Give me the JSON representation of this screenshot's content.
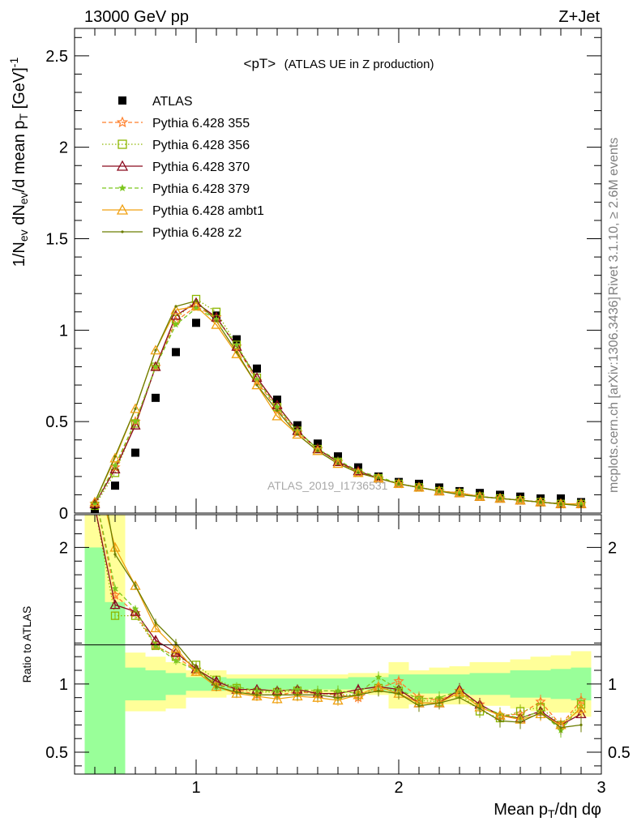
{
  "header": {
    "left": "13000 GeV pp",
    "right": "Z+Jet"
  },
  "side_labels": {
    "rivet": "Rivet 3.1.10, ≥ 2.6M events",
    "mcplots": "mcplots.cern.ch [arXiv:1306.3436]"
  },
  "watermark": "ATLAS_2019_I1736531",
  "colors": {
    "atlas": "#000000",
    "p355": "#ff7f2a",
    "p356": "#8db600",
    "p370": "#8b0a1e",
    "p379": "#7cc61e",
    "ambt1": "#f0a010",
    "z2": "#6b7d00",
    "band_inner": "#99ff99",
    "band_outer": "#ffff99"
  },
  "chart_data": [
    {
      "type": "scatter",
      "panel": "main",
      "title_main": "<pT>",
      "title_sub": "(ATLAS UE in Z production)",
      "ylabel": "1/N_ev dN_ev/d mean p_T [GeV]^-1",
      "xlim": [
        0.4,
        3.0
      ],
      "ylim": [
        0,
        2.65
      ],
      "yticks": [
        0,
        0.5,
        1,
        1.5,
        2,
        2.5
      ],
      "ytick_labels": [
        "0",
        "0.5",
        "1",
        "1.5",
        "2",
        "2.5"
      ],
      "legend_position": "top-left",
      "x": [
        0.5,
        0.6,
        0.7,
        0.8,
        0.9,
        1.0,
        1.1,
        1.2,
        1.3,
        1.4,
        1.5,
        1.6,
        1.7,
        1.8,
        1.9,
        2.0,
        2.1,
        2.2,
        2.3,
        2.4,
        2.5,
        2.6,
        2.7,
        2.8,
        2.9
      ],
      "series": [
        {
          "name": "ATLAS",
          "marker": "square",
          "line": "none",
          "values": [
            0.02,
            0.15,
            0.33,
            0.63,
            0.88,
            1.04,
            1.08,
            0.95,
            0.79,
            0.62,
            0.48,
            0.38,
            0.31,
            0.25,
            0.2,
            0.17,
            0.16,
            0.14,
            0.12,
            0.11,
            0.1,
            0.09,
            0.08,
            0.08,
            0.06
          ]
        },
        {
          "name": "Pythia 6.428 355",
          "marker": "star-open",
          "line": "dashed",
          "values": [
            0.05,
            0.25,
            0.5,
            0.8,
            1.05,
            1.13,
            1.07,
            0.91,
            0.72,
            0.57,
            0.44,
            0.35,
            0.28,
            0.22,
            0.19,
            0.16,
            0.14,
            0.12,
            0.11,
            0.09,
            0.08,
            0.07,
            0.06,
            0.05,
            0.05
          ]
        },
        {
          "name": "Pythia 6.428 356",
          "marker": "square-open",
          "line": "dotted",
          "values": [
            0.04,
            0.22,
            0.49,
            0.8,
            1.06,
            1.17,
            1.1,
            0.92,
            0.74,
            0.58,
            0.45,
            0.35,
            0.28,
            0.22,
            0.19,
            0.16,
            0.14,
            0.12,
            0.11,
            0.09,
            0.08,
            0.07,
            0.06,
            0.05,
            0.05
          ]
        },
        {
          "name": "Pythia 6.428 370",
          "marker": "triangle-open",
          "line": "solid",
          "values": [
            0.05,
            0.24,
            0.48,
            0.8,
            1.08,
            1.15,
            1.07,
            0.91,
            0.74,
            0.59,
            0.45,
            0.35,
            0.28,
            0.23,
            0.19,
            0.16,
            0.14,
            0.12,
            0.11,
            0.09,
            0.08,
            0.07,
            0.06,
            0.05,
            0.05
          ]
        },
        {
          "name": "Pythia 6.428 379",
          "marker": "star-filled",
          "line": "dashed",
          "values": [
            0.05,
            0.26,
            0.5,
            0.8,
            1.03,
            1.12,
            1.06,
            0.92,
            0.73,
            0.58,
            0.45,
            0.35,
            0.29,
            0.23,
            0.2,
            0.16,
            0.14,
            0.12,
            0.11,
            0.09,
            0.08,
            0.07,
            0.06,
            0.05,
            0.05
          ]
        },
        {
          "name": "Pythia 6.428 ambt1",
          "marker": "triangle-open",
          "line": "solid",
          "values": [
            0.06,
            0.3,
            0.57,
            0.89,
            1.11,
            1.13,
            1.03,
            0.87,
            0.7,
            0.53,
            0.43,
            0.34,
            0.27,
            0.22,
            0.19,
            0.16,
            0.14,
            0.12,
            0.11,
            0.09,
            0.08,
            0.07,
            0.06,
            0.05,
            0.05
          ]
        },
        {
          "name": "Pythia 6.428 z2",
          "marker": "dot",
          "line": "solid",
          "values": [
            0.06,
            0.31,
            0.57,
            0.89,
            1.13,
            1.16,
            1.05,
            0.88,
            0.7,
            0.56,
            0.43,
            0.34,
            0.27,
            0.22,
            0.19,
            0.16,
            0.14,
            0.12,
            0.1,
            0.09,
            0.08,
            0.07,
            0.06,
            0.05,
            0.04
          ]
        }
      ]
    },
    {
      "type": "line",
      "panel": "ratio",
      "ylabel": "Ratio to ATLAS",
      "xlabel": "Mean p_T/dη dφ",
      "xlim": [
        0.4,
        3.0
      ],
      "ylim": [
        0.34,
        2.24
      ],
      "xticks": [
        1,
        2,
        3
      ],
      "xtick_labels": [
        "1",
        "2",
        "3"
      ],
      "yticks": [
        0.5,
        1,
        2
      ],
      "ytick_labels": [
        "0.5",
        "1",
        "2"
      ],
      "x": [
        0.5,
        0.6,
        0.7,
        0.8,
        0.9,
        1.0,
        1.1,
        1.2,
        1.3,
        1.4,
        1.5,
        1.6,
        1.7,
        1.8,
        1.9,
        2.0,
        2.1,
        2.2,
        2.3,
        2.4,
        2.5,
        2.6,
        2.7,
        2.8,
        2.9
      ],
      "bands": {
        "x_edges": [
          0.45,
          0.55,
          0.65,
          0.75,
          0.85,
          0.95,
          1.05,
          1.15,
          1.25,
          1.35,
          1.45,
          1.55,
          1.65,
          1.75,
          1.85,
          1.95,
          2.05,
          2.15,
          2.25,
          2.35,
          2.45,
          2.55,
          2.65,
          2.75,
          2.85,
          2.95
        ],
        "inner_lo": [
          0.3,
          0.3,
          0.88,
          0.88,
          0.92,
          0.95,
          0.95,
          0.96,
          0.96,
          0.96,
          0.96,
          0.96,
          0.96,
          0.96,
          0.95,
          0.93,
          0.93,
          0.93,
          0.93,
          0.92,
          0.92,
          0.9,
          0.9,
          0.89,
          0.88
        ],
        "inner_hi": [
          2.0,
          1.6,
          1.12,
          1.1,
          1.08,
          1.05,
          1.05,
          1.04,
          1.04,
          1.04,
          1.04,
          1.04,
          1.04,
          1.05,
          1.05,
          1.07,
          1.07,
          1.07,
          1.07,
          1.08,
          1.08,
          1.1,
          1.1,
          1.11,
          1.12
        ],
        "outer_lo": [
          0.3,
          0.3,
          0.8,
          0.8,
          0.82,
          0.9,
          0.9,
          0.92,
          0.93,
          0.93,
          0.93,
          0.93,
          0.93,
          0.93,
          0.92,
          0.82,
          0.85,
          0.85,
          0.85,
          0.84,
          0.84,
          0.82,
          0.8,
          0.79,
          0.76
        ],
        "outer_hi": [
          2.24,
          2.24,
          1.23,
          1.2,
          1.16,
          1.1,
          1.1,
          1.07,
          1.07,
          1.07,
          1.07,
          1.07,
          1.07,
          1.08,
          1.08,
          1.16,
          1.1,
          1.12,
          1.13,
          1.16,
          1.16,
          1.18,
          1.2,
          1.21,
          1.24
        ]
      },
      "series": [
        {
          "name": "Pythia 6.428 355",
          "values": [
            2.4,
            1.65,
            1.52,
            1.28,
            1.2,
            1.1,
            1.0,
            0.96,
            0.92,
            0.92,
            0.94,
            0.93,
            0.92,
            0.9,
            0.97,
            1.02,
            0.9,
            0.88,
            0.95,
            0.85,
            0.77,
            0.78,
            0.87,
            0.7,
            0.88
          ]
        },
        {
          "name": "Pythia 6.428 356",
          "values": [
            2.3,
            1.5,
            1.5,
            1.28,
            1.2,
            1.14,
            1.03,
            0.97,
            0.94,
            0.94,
            0.95,
            0.93,
            0.92,
            0.92,
            0.97,
            0.95,
            0.88,
            0.87,
            0.93,
            0.8,
            0.75,
            0.8,
            0.83,
            0.7,
            0.85
          ]
        },
        {
          "name": "Pythia 6.428 370",
          "values": [
            2.3,
            1.58,
            1.53,
            1.32,
            1.23,
            1.11,
            1.02,
            0.96,
            0.96,
            0.95,
            0.96,
            0.93,
            0.93,
            0.96,
            0.98,
            0.96,
            0.86,
            0.86,
            0.96,
            0.85,
            0.77,
            0.75,
            0.8,
            0.7,
            0.78
          ]
        },
        {
          "name": "Pythia 6.428 379",
          "values": [
            2.4,
            1.7,
            1.55,
            1.28,
            1.17,
            1.1,
            0.98,
            0.98,
            0.95,
            0.95,
            0.96,
            0.95,
            0.95,
            0.93,
            1.05,
            0.96,
            0.89,
            0.9,
            0.95,
            0.84,
            0.78,
            0.75,
            0.8,
            0.66,
            0.84
          ]
        },
        {
          "name": "Pythia 6.428 ambt1",
          "values": [
            2.6,
            2.0,
            1.72,
            1.41,
            1.26,
            1.09,
            0.98,
            0.93,
            0.91,
            0.89,
            0.91,
            0.9,
            0.88,
            0.92,
            0.98,
            0.93,
            0.86,
            0.86,
            0.94,
            0.83,
            0.77,
            0.74,
            0.78,
            0.7,
            0.82
          ]
        },
        {
          "name": "Pythia 6.428 z2",
          "values": [
            2.8,
            1.95,
            1.72,
            1.45,
            1.3,
            1.12,
            0.98,
            0.94,
            0.92,
            0.92,
            0.92,
            0.92,
            0.9,
            0.92,
            0.95,
            0.93,
            0.84,
            0.86,
            0.9,
            0.82,
            0.73,
            0.72,
            0.79,
            0.68,
            0.7
          ]
        }
      ]
    }
  ]
}
